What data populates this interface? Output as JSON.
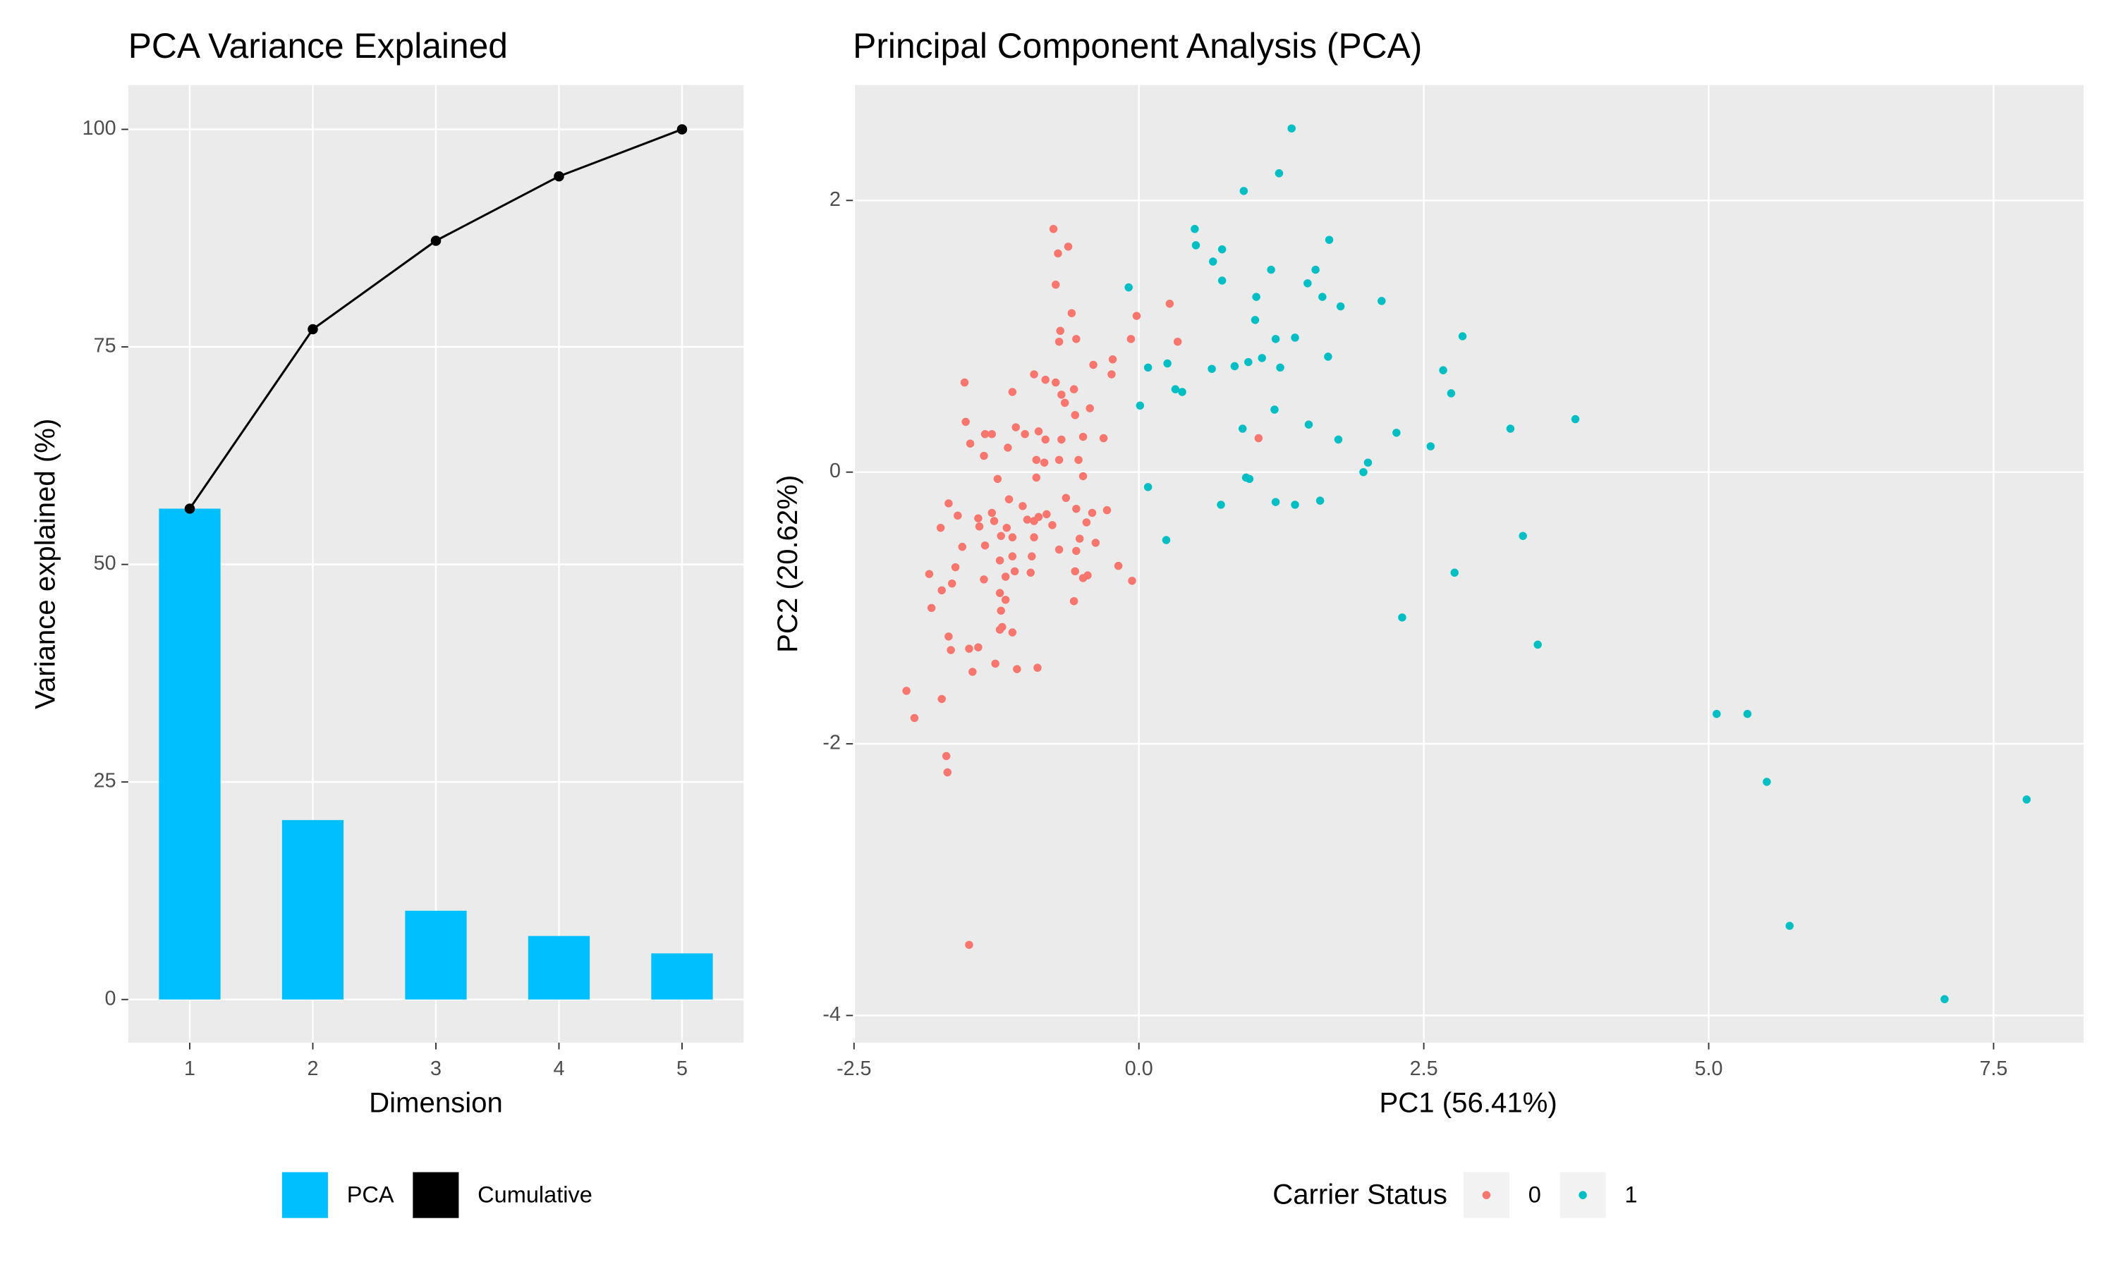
{
  "chart_data": [
    {
      "type": "bar",
      "title": "PCA Variance Explained",
      "x_label": "Dimension",
      "y_label": "Variance explained (%)",
      "categories": [
        "1",
        "2",
        "3",
        "4",
        "5"
      ],
      "series": [
        {
          "name": "PCA",
          "color": "#00bfff",
          "values": [
            56.41,
            20.62,
            10.2,
            7.3,
            5.3
          ]
        },
        {
          "name": "Cumulative",
          "color": "#000000",
          "type": "line",
          "values": [
            56.41,
            77.03,
            87.2,
            94.6,
            100
          ]
        }
      ],
      "ylim": [
        -4.96,
        105.1
      ],
      "yticks": [
        0,
        25,
        50,
        75,
        100
      ],
      "grid": true,
      "legend": "bottom"
    },
    {
      "type": "scatter",
      "title": "Principal Component Analysis (PCA)",
      "x_label": "PC1 (56.41%)",
      "y_label": "PC2 (20.62%)",
      "legend_title": "Carrier Status",
      "series": [
        {
          "name": "0",
          "color": "#f8766d",
          "x": [
            -0.75,
            -0.71,
            -0.62,
            -0.73,
            -0.59,
            -0.69,
            -0.7,
            -0.55,
            -0.92,
            -0.82,
            -0.73,
            -0.68,
            -0.57,
            -0.4,
            -0.23,
            -0.24,
            -0.07,
            -0.02,
            0.27,
            0.34,
            -1.53,
            -1.11,
            -0.43,
            -0.65,
            -0.56,
            -1.52,
            -1.48,
            -1.35,
            -1.29,
            -1.08,
            -1.0,
            -0.88,
            -0.82,
            -0.68,
            -0.49,
            -0.31,
            1.05,
            -1.36,
            -1.15,
            -0.9,
            -0.7,
            -0.53,
            -1.24,
            -0.9,
            -0.83,
            -0.49,
            -1.67,
            -1.59,
            -1.41,
            -1.29,
            -1.27,
            -1.14,
            -1.16,
            -1.02,
            -0.98,
            -0.92,
            -0.88,
            -0.81,
            -0.76,
            -0.64,
            -0.55,
            -0.46,
            -0.41,
            -0.28,
            -1.74,
            -1.4,
            -1.21,
            -1.11,
            -0.92,
            -0.7,
            -0.55,
            -1.55,
            -1.35,
            -1.22,
            -1.11,
            -0.94,
            -0.52,
            -0.38,
            -1.84,
            -1.73,
            -1.64,
            -1.61,
            -1.17,
            -1.09,
            -0.95,
            -0.56,
            -0.49,
            -0.45,
            -0.18,
            -0.06,
            -1.82,
            -1.36,
            -1.22,
            -1.17,
            -1.21,
            -1.2,
            -1.11,
            -1.22,
            -1.41,
            -1.65,
            -1.67,
            -1.49,
            -1.26,
            -1.46,
            -1.07,
            -0.89,
            -2.04,
            -1.97,
            -1.73,
            -1.69,
            -1.68,
            -1.49,
            -0.57
          ],
          "y": [
            1.79,
            1.61,
            1.66,
            1.38,
            1.17,
            1.04,
            0.96,
            0.98,
            0.72,
            0.68,
            0.66,
            0.57,
            0.61,
            0.79,
            0.83,
            0.72,
            0.98,
            1.15,
            1.24,
            0.96,
            0.66,
            0.59,
            0.47,
            0.51,
            0.42,
            0.37,
            0.21,
            0.28,
            0.28,
            0.33,
            0.28,
            0.3,
            0.24,
            0.24,
            0.26,
            0.25,
            0.25,
            0.12,
            0.18,
            0.09,
            0.09,
            0.09,
            -0.05,
            -0.04,
            0.07,
            -0.03,
            -0.23,
            -0.32,
            -0.34,
            -0.3,
            -0.36,
            -0.2,
            -0.41,
            -0.25,
            -0.35,
            -0.36,
            -0.33,
            -0.31,
            -0.39,
            -0.19,
            -0.27,
            -0.37,
            -0.3,
            -0.28,
            -0.41,
            -0.4,
            -0.47,
            -0.48,
            -0.48,
            -0.57,
            -0.58,
            -0.55,
            -0.54,
            -0.65,
            -0.62,
            -0.62,
            -0.49,
            -0.52,
            -0.75,
            -0.87,
            -0.82,
            -0.7,
            -0.77,
            -0.73,
            -0.74,
            -0.73,
            -0.78,
            -0.76,
            -0.69,
            -0.8,
            -1.0,
            -0.79,
            -0.89,
            -0.94,
            -1.02,
            -1.14,
            -1.18,
            -1.16,
            -1.29,
            -1.31,
            -1.21,
            -1.3,
            -1.41,
            -1.47,
            -1.45,
            -1.44,
            -1.61,
            -1.81,
            -1.67,
            -2.09,
            -2.21,
            -3.48,
            -0.95
          ]
        },
        {
          "name": "1",
          "color": "#00bfc4",
          "x": [
            1.34,
            1.23,
            0.92,
            0.49,
            0.5,
            0.73,
            0.65,
            1.67,
            1.16,
            1.55,
            0.73,
            -0.09,
            1.03,
            1.48,
            1.61,
            1.77,
            2.13,
            1.02,
            1.2,
            1.37,
            2.84,
            0.08,
            0.25,
            0.64,
            0.84,
            0.96,
            1.08,
            1.24,
            1.66,
            2.67,
            0.32,
            0.38,
            2.74,
            0.01,
            1.19,
            3.26,
            3.83,
            0.91,
            1.49,
            2.26,
            1.75,
            2.56,
            2.01,
            1.97,
            0.94,
            0.97,
            0.08,
            0.72,
            1.2,
            1.37,
            1.59,
            3.37,
            0.24,
            2.77,
            2.31,
            3.5,
            5.07,
            5.34,
            5.51,
            7.79,
            5.71,
            7.07
          ],
          "y": [
            2.53,
            2.2,
            2.07,
            1.79,
            1.67,
            1.64,
            1.55,
            1.71,
            1.49,
            1.49,
            1.41,
            1.36,
            1.29,
            1.39,
            1.29,
            1.22,
            1.26,
            1.12,
            0.98,
            0.99,
            1.0,
            0.77,
            0.8,
            0.76,
            0.78,
            0.81,
            0.84,
            0.77,
            0.85,
            0.75,
            0.61,
            0.59,
            0.58,
            0.49,
            0.46,
            0.32,
            0.39,
            0.32,
            0.35,
            0.29,
            0.24,
            0.19,
            0.07,
            0,
            -0.04,
            -0.05,
            -0.11,
            -0.24,
            -0.22,
            -0.24,
            -0.21,
            -0.47,
            -0.5,
            -0.74,
            -1.07,
            -1.27,
            -1.78,
            -1.78,
            -2.28,
            -2.41,
            -3.34,
            -3.88
          ]
        }
      ],
      "xlim": [
        -2.51,
        8.29
      ],
      "ylim": [
        -4.2,
        2.85
      ],
      "xticks": [
        -2.5,
        {
          "value": 0,
          "label": "0.0"
        },
        2.5,
        {
          "value": 5,
          "label": "5.0"
        },
        7.5
      ],
      "yticks": [
        -4,
        -2,
        0,
        2
      ],
      "grid": true,
      "legend": "bottom"
    }
  ]
}
